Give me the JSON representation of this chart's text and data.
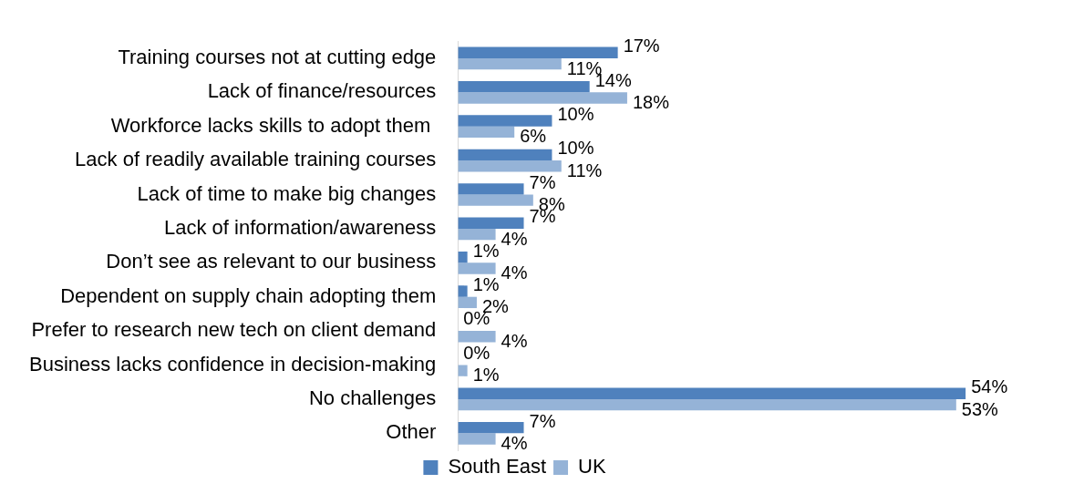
{
  "chart_data": {
    "type": "bar",
    "orientation": "horizontal",
    "categories": [
      "Training courses not at cutting edge",
      "Lack of finance/resources",
      "Workforce lacks skills to adopt them ",
      "Lack of readily available training courses",
      "Lack of time to make big changes",
      "Lack of information/awareness",
      "Don’t see as relevant to our business",
      "Dependent on supply chain adopting them",
      "Prefer to research new tech on client demand",
      "Business lacks confidence in decision-making",
      "No challenges",
      "Other"
    ],
    "series": [
      {
        "name": "South East",
        "color": "#4f81bd",
        "values": [
          17,
          14,
          10,
          10,
          7,
          7,
          1,
          1,
          0,
          0,
          54,
          7
        ],
        "value_labels": [
          "17%",
          "14%",
          "10%",
          "10%",
          "7%",
          "7%",
          "1%",
          "1%",
          "0%",
          "0%",
          "54%",
          "7%"
        ]
      },
      {
        "name": "UK",
        "color": "#95b3d7",
        "values": [
          11,
          18,
          6,
          11,
          8,
          4,
          4,
          2,
          4,
          1,
          53,
          4
        ],
        "value_labels": [
          "11%",
          "18%",
          "6%",
          "11%",
          "8%",
          "4%",
          "4%",
          "2%",
          "4%",
          "1%",
          "53%",
          "4%"
        ]
      }
    ],
    "legend": "bottom",
    "tick_labels": "y"
  }
}
